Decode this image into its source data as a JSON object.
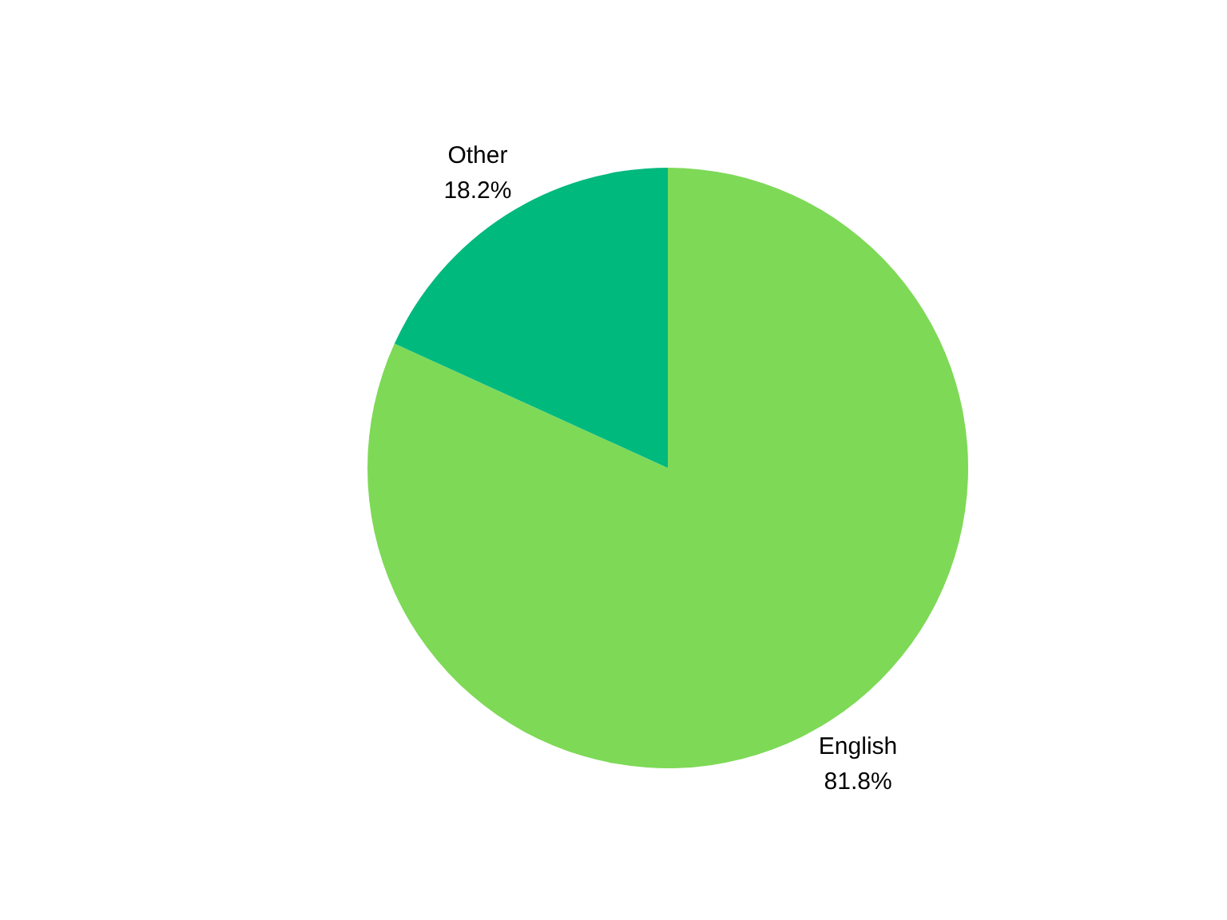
{
  "chart_data": {
    "type": "pie",
    "categories": [
      "English",
      "Other"
    ],
    "values": [
      81.8,
      18.2
    ],
    "colors": [
      "#7ed957",
      "#00b97d"
    ],
    "value_labels": [
      "81.8%",
      "18.2%"
    ]
  }
}
